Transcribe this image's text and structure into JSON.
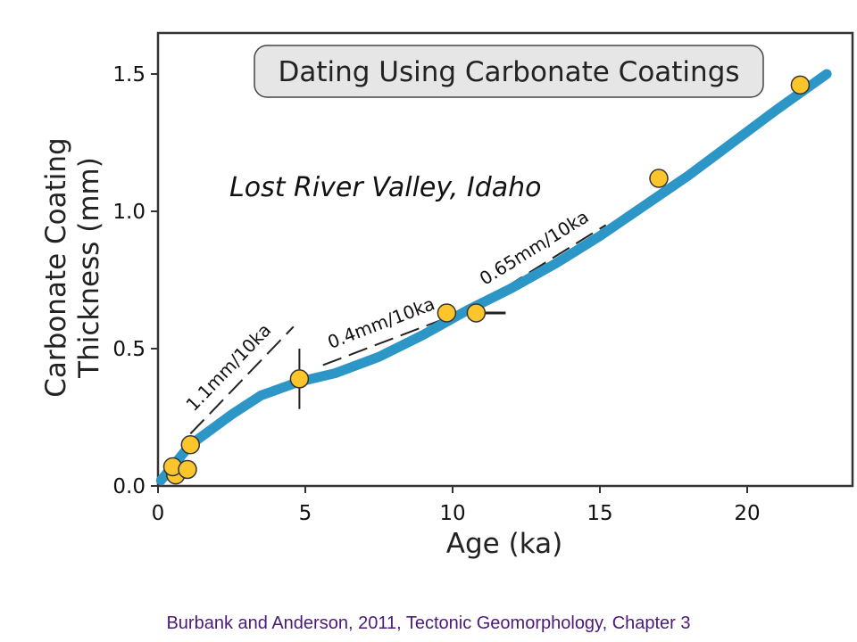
{
  "chart_data": {
    "type": "scatter",
    "title": "Dating Using Carbonate Coatings",
    "annotation": "Lost River Valley, Idaho",
    "xlabel": "Age (ka)",
    "ylabel": [
      "Carbonate Coating",
      "Thickness (mm)"
    ],
    "xlim": [
      0,
      23.5
    ],
    "ylim": [
      0,
      1.65
    ],
    "x_ticks": [
      0,
      5,
      10,
      15,
      20
    ],
    "y_ticks": [
      0.0,
      0.5,
      1.0,
      1.5
    ],
    "x_tick_labels": [
      "0",
      "5",
      "10",
      "15",
      "20"
    ],
    "y_tick_labels": [
      "0.0",
      "0.5",
      "1.0",
      "1.5"
    ],
    "points": [
      {
        "x": 0.6,
        "y": 0.04
      },
      {
        "x": 0.5,
        "y": 0.07
      },
      {
        "x": 1.0,
        "y": 0.06
      },
      {
        "x": 1.1,
        "y": 0.15
      },
      {
        "x": 4.8,
        "y": 0.39
      },
      {
        "x": 9.8,
        "y": 0.63
      },
      {
        "x": 10.8,
        "y": 0.63
      },
      {
        "x": 17.0,
        "y": 1.12
      },
      {
        "x": 21.8,
        "y": 1.46
      }
    ],
    "error_bars": [
      {
        "x": 4.8,
        "y": 0.39,
        "y_low": 0.28,
        "y_high": 0.5
      },
      {
        "x": 10.8,
        "y": 0.63,
        "x_low": 10.8,
        "x_high": 11.8
      }
    ],
    "trend_line": {
      "x": [
        0.1,
        1.1,
        2.5,
        3.5,
        4.8,
        6.0,
        7.5,
        9.0,
        10.5,
        12.0,
        13.5,
        15.0,
        16.5,
        18.0,
        19.5,
        21.0,
        22.7
      ],
      "y": [
        0.02,
        0.15,
        0.26,
        0.33,
        0.38,
        0.41,
        0.47,
        0.55,
        0.64,
        0.72,
        0.81,
        0.91,
        1.02,
        1.13,
        1.25,
        1.37,
        1.5
      ]
    },
    "rate_segments": [
      {
        "label": "1.1mm/10ka",
        "x0": 1.1,
        "y0": 0.19,
        "x1": 4.6,
        "y1": 0.58
      },
      {
        "label": "0.4mm/10ka",
        "x0": 5.6,
        "y0": 0.44,
        "x1": 10.0,
        "y1": 0.62
      },
      {
        "label": "0.65mm/10ka",
        "x0": 11.0,
        "y0": 0.67,
        "x1": 15.2,
        "y1": 0.95
      }
    ],
    "colors": {
      "trend": "#2c97c6",
      "marker_fill": "#fdc52c",
      "marker_edge": "#333333",
      "title_box": "#e6e6e6"
    },
    "grid": false,
    "legend": "none"
  },
  "citation": "Burbank and Anderson, 2011, Tectonic Geomorphology, Chapter 3"
}
